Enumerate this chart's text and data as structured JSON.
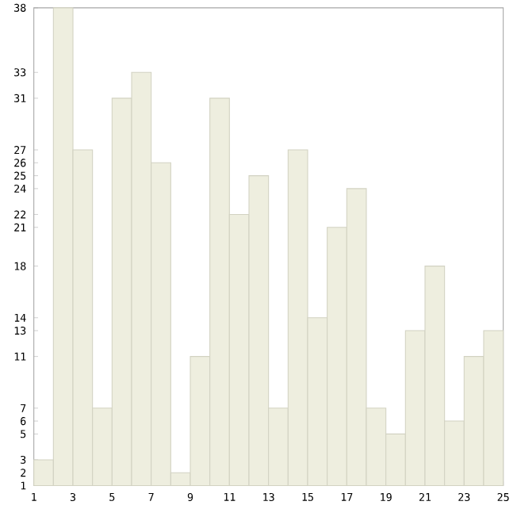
{
  "chart_data": {
    "type": "histogram",
    "bins": [
      1,
      2,
      3,
      4,
      5,
      6,
      7,
      8,
      9,
      10,
      11,
      12,
      13,
      14,
      15,
      16,
      17,
      18,
      19,
      20,
      21,
      22,
      23,
      24,
      25
    ],
    "values": [
      3,
      38,
      27,
      7,
      31,
      33,
      26,
      2,
      11,
      31,
      22,
      25,
      7,
      27,
      14,
      21,
      24,
      7,
      5,
      13,
      18,
      6,
      11,
      13
    ],
    "color": "#eeeedf",
    "xlim": [
      1,
      25
    ],
    "xticks": [
      1,
      3,
      5,
      7,
      9,
      11,
      13,
      15,
      17,
      19,
      21,
      23,
      25
    ],
    "ylim": [
      1,
      38
    ],
    "yticks": [
      1,
      2,
      3,
      5,
      6,
      7,
      11,
      13,
      14,
      18,
      21,
      22,
      24,
      25,
      26,
      27,
      31,
      33,
      38
    ],
    "grid": false
  }
}
